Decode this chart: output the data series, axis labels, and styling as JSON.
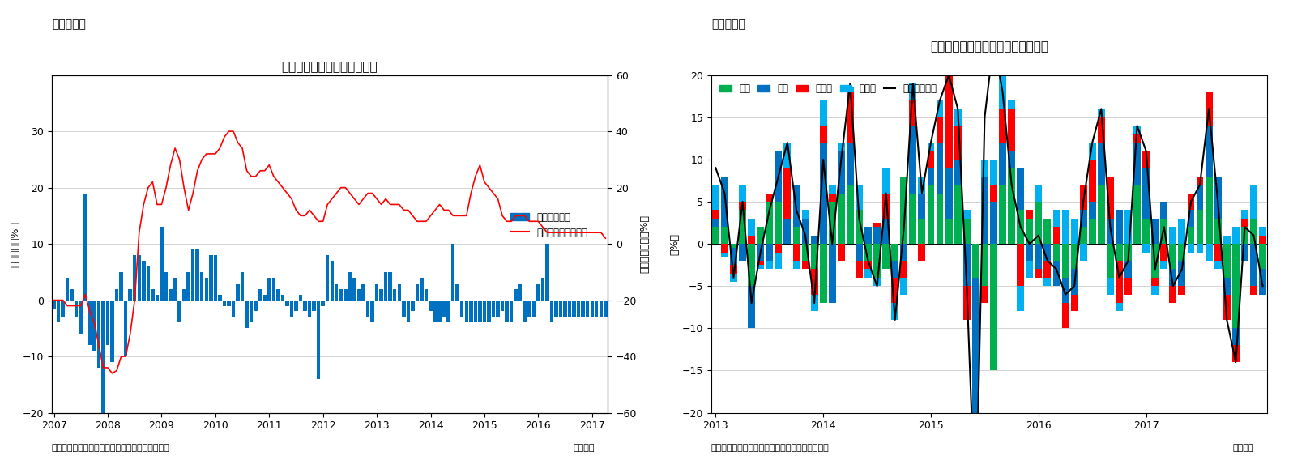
{
  "chart5": {
    "title": "住宅着工許可件数（伸び率）",
    "left_label": "（前月比、%）",
    "right_label": "（前年同月比、%）",
    "xlabel": "（月次）",
    "source": "（資料）センサス局よりニッセイ基礎研究所作成",
    "header": "（図表５）",
    "ylim_left": [
      -20,
      40
    ],
    "ylim_right": [
      -60,
      60
    ],
    "yticks_left": [
      -20,
      -10,
      0,
      10,
      20,
      30
    ],
    "yticks_right": [
      -60,
      -40,
      -20,
      0,
      20,
      40,
      60
    ],
    "bar_color": "#0070C0",
    "line_color": "#FF0000",
    "legend_bar": "季調済前月比",
    "legend_line": "前年同月比（右軸）",
    "bar_data": [
      -1.5,
      -4,
      -3,
      4,
      2,
      -3,
      -6,
      19,
      -8,
      -9,
      -12,
      -20,
      -8,
      -11,
      2,
      5,
      -10,
      2,
      8,
      8,
      7,
      6,
      2,
      1,
      13,
      5,
      2,
      4,
      -4,
      2,
      5,
      9,
      9,
      5,
      4,
      8,
      8,
      1,
      -1,
      -1,
      -3,
      3,
      5,
      -5,
      -4,
      -2,
      2,
      1,
      4,
      4,
      2,
      1,
      -1,
      -3,
      -2,
      1,
      -2,
      -3,
      -2,
      -14,
      -1,
      8,
      7,
      3,
      2,
      2,
      5,
      4,
      2,
      3,
      -3,
      -4,
      3,
      2,
      5,
      5,
      2,
      3,
      -3,
      -4,
      -2,
      3,
      4,
      2,
      -2,
      -4,
      -4,
      -3,
      -4,
      10,
      3,
      -3,
      -4,
      -4,
      -4,
      -4,
      -4,
      -4,
      -3,
      -3,
      -2,
      -4,
      -4,
      2,
      3,
      -4,
      -3,
      -3,
      3,
      4,
      10,
      -4,
      -3,
      -3,
      -3,
      -3,
      -3,
      -3,
      -3,
      -3,
      -3,
      -3,
      -3,
      -3
    ],
    "line_data": [
      -20,
      -20,
      -20,
      -22,
      -22,
      -22,
      -22,
      -18,
      -24,
      -28,
      -36,
      -44,
      -44,
      -46,
      -45,
      -40,
      -40,
      -32,
      -20,
      4,
      14,
      20,
      22,
      14,
      14,
      20,
      28,
      34,
      30,
      20,
      12,
      18,
      26,
      30,
      32,
      32,
      32,
      34,
      38,
      40,
      40,
      36,
      34,
      26,
      24,
      24,
      26,
      26,
      28,
      24,
      22,
      20,
      18,
      16,
      12,
      10,
      10,
      12,
      10,
      8,
      8,
      14,
      16,
      18,
      20,
      20,
      18,
      16,
      14,
      16,
      18,
      18,
      16,
      14,
      16,
      14,
      14,
      14,
      12,
      12,
      10,
      8,
      8,
      8,
      10,
      12,
      14,
      12,
      12,
      10,
      10,
      10,
      10,
      18,
      24,
      28,
      22,
      20,
      18,
      16,
      10,
      8,
      8,
      10,
      10,
      10,
      8,
      8,
      8,
      6,
      4,
      4,
      4,
      4,
      4,
      4,
      4,
      4,
      4,
      4,
      4,
      4,
      4,
      2
    ],
    "n_bars": 124,
    "start_year": 2007,
    "xtick_years": [
      2007,
      2008,
      2009,
      2010,
      2011,
      2012,
      2013,
      2014,
      2015,
      2016,
      2017
    ]
  },
  "chart6": {
    "title": "住宅着工許可件数前月比（寄与度）",
    "ylabel": "（%）",
    "xlabel": "（月次）",
    "source": "（資料）センサス局よりニッセイ基礎研究所作成",
    "header": "（図表６）",
    "ylim": [
      -20,
      20
    ],
    "yticks": [
      -20,
      -15,
      -10,
      -5,
      0,
      5,
      10,
      15,
      20
    ],
    "colors": {
      "west": "#00B050",
      "south": "#0070C0",
      "northeast": "#FF0000",
      "midwest": "#00B0F0",
      "total": "#000000"
    },
    "legend_labels": [
      "西部",
      "南部",
      "北東部",
      "中西部",
      "住宅許可件数"
    ],
    "xtick_years": [
      2013,
      2014,
      2015,
      2016,
      2017
    ],
    "west": [
      2,
      2,
      -0.5,
      4,
      -5,
      2,
      5,
      5,
      0,
      2,
      -2,
      -3,
      -7,
      5,
      6,
      7,
      4,
      -2,
      -4,
      -3,
      -2,
      8,
      6,
      3,
      7,
      6,
      3,
      7,
      3,
      -4,
      -5,
      -15,
      7,
      9,
      4,
      3,
      5,
      3,
      -2,
      -4,
      -3,
      2,
      3,
      7,
      -4,
      -2,
      -2,
      7,
      3,
      -4,
      3,
      -3,
      -2,
      2,
      4,
      8,
      3,
      -4,
      -10,
      2,
      3,
      -3
    ],
    "south": [
      1,
      6,
      -2,
      -2,
      -5,
      -2,
      -2,
      6,
      3,
      5,
      3,
      1,
      12,
      -7,
      5,
      5,
      -2,
      2,
      2,
      3,
      -2,
      -2,
      8,
      3,
      2,
      6,
      6,
      3,
      -5,
      -16,
      8,
      5,
      5,
      2,
      5,
      -2,
      -3,
      -2,
      -3,
      -3,
      -3,
      2,
      2,
      5,
      3,
      4,
      -2,
      5,
      6,
      3,
      2,
      -2,
      -3,
      2,
      3,
      6,
      5,
      -2,
      -2,
      -2,
      -5,
      -3
    ],
    "northeast": [
      1,
      -1,
      -1,
      1,
      1,
      -0.5,
      1,
      -1,
      6,
      -2,
      -1,
      -3,
      2,
      1,
      -2,
      6,
      -2,
      -1,
      0.5,
      3,
      -3,
      -2,
      3,
      -2,
      2,
      3,
      11,
      4,
      -4,
      -1,
      -2,
      2,
      4,
      5,
      -5,
      1,
      -1,
      -2,
      2,
      -3,
      -2,
      3,
      5,
      3,
      5,
      -5,
      -2,
      1,
      2,
      -1,
      -2,
      -2,
      -1,
      2,
      1,
      4,
      -2,
      -3,
      -2,
      1,
      -1,
      1
    ],
    "midwest": [
      3,
      -0.5,
      -1,
      2,
      2,
      -0.5,
      -1,
      -2,
      3,
      -1,
      1,
      -2,
      3,
      1,
      1,
      0.5,
      3,
      -1,
      -1,
      3,
      -2,
      -2,
      2,
      2,
      1,
      2,
      0.5,
      2,
      1,
      -2,
      2,
      3,
      4,
      1,
      -3,
      -2,
      2,
      -1,
      2,
      4,
      3,
      -2,
      2,
      1,
      -2,
      -1,
      4,
      1,
      -1,
      -1,
      -1,
      2,
      3,
      -1,
      -1,
      -2,
      -1,
      1,
      2,
      1,
      4,
      1
    ],
    "total": [
      9,
      6,
      -4,
      5,
      -7,
      -1,
      4,
      8,
      12,
      4,
      1,
      -7,
      10,
      0,
      10,
      19,
      3,
      -2,
      -5,
      6,
      -9,
      2,
      19,
      6,
      12,
      17,
      20,
      16,
      -5,
      -33,
      15,
      24,
      18,
      7,
      2,
      0,
      1,
      -2,
      -3,
      -6,
      -5,
      5,
      12,
      16,
      2,
      -4,
      -2,
      14,
      11,
      -3,
      2,
      -5,
      -3,
      5,
      7,
      16,
      5,
      -9,
      -14,
      2,
      1,
      -5
    ],
    "n_bars": 62
  }
}
